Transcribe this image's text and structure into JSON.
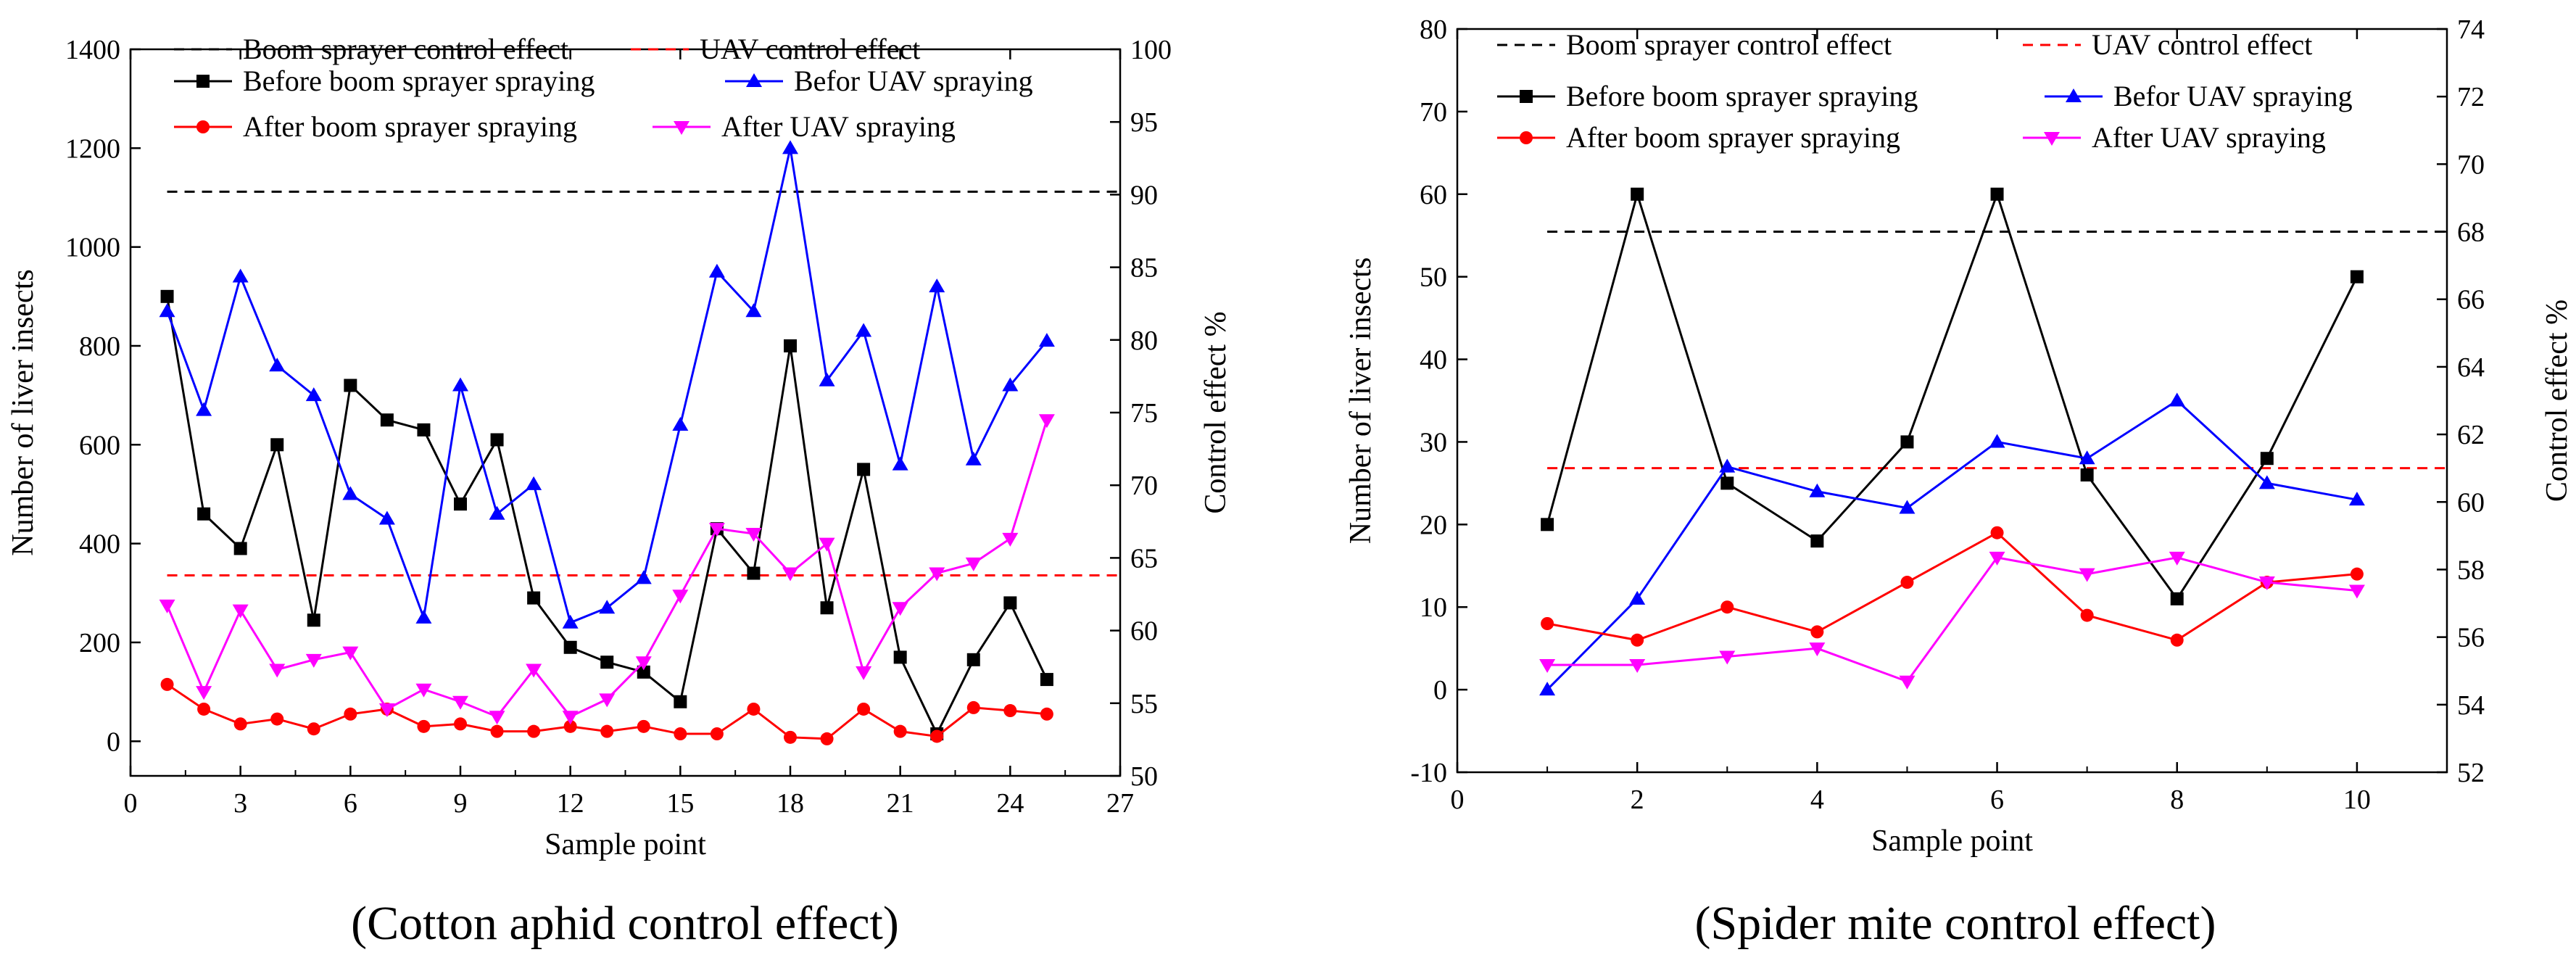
{
  "chart_data": [
    {
      "type": "line",
      "caption": "(Cotton aphid control effect)",
      "xlabel": "Sample point",
      "ylabel": "Number of liver insects",
      "y2label": "Control effect %",
      "xlim": [
        0,
        27
      ],
      "ylim": [
        -70,
        1400
      ],
      "y2lim": [
        50,
        100
      ],
      "xticks": [
        "0",
        "3",
        "6",
        "9",
        "12",
        "15",
        "18",
        "21",
        "24",
        "27"
      ],
      "xtick_values": [
        0,
        3,
        6,
        9,
        12,
        15,
        18,
        21,
        24,
        27
      ],
      "yticks": [
        "0",
        "200",
        "400",
        "600",
        "800",
        "1000",
        "1200",
        "1400"
      ],
      "ytick_values": [
        0,
        200,
        400,
        600,
        800,
        1000,
        1200,
        1400
      ],
      "y2ticks": [
        "50",
        "55",
        "60",
        "65",
        "70",
        "75",
        "80",
        "85",
        "90",
        "95",
        "100"
      ],
      "y2tick_values": [
        50,
        55,
        60,
        65,
        70,
        75,
        80,
        85,
        90,
        95,
        100
      ],
      "x": [
        1,
        2,
        3,
        4,
        5,
        6,
        7,
        8,
        9,
        10,
        11,
        12,
        13,
        14,
        15,
        16,
        17,
        18,
        19,
        20,
        21,
        22,
        23,
        24,
        25
      ],
      "series": [
        {
          "name": "Before boom sprayer spraying",
          "color": "#000000",
          "marker": "square",
          "values": [
            900,
            460,
            390,
            600,
            245,
            720,
            650,
            630,
            480,
            610,
            290,
            190,
            160,
            140,
            80,
            430,
            340,
            800,
            270,
            550,
            170,
            15,
            165,
            280,
            125
          ]
        },
        {
          "name": "Befor UAV spraying",
          "color": "#0000ff",
          "marker": "triangle-up",
          "values": [
            870,
            670,
            940,
            760,
            700,
            500,
            450,
            250,
            720,
            460,
            520,
            240,
            270,
            330,
            640,
            950,
            870,
            1200,
            730,
            830,
            560,
            920,
            570,
            720,
            810
          ]
        },
        {
          "name": "After boom sprayer spraying",
          "color": "#ff0000",
          "marker": "circle",
          "values": [
            115,
            65,
            35,
            45,
            25,
            55,
            65,
            30,
            35,
            20,
            20,
            30,
            20,
            30,
            15,
            15,
            65,
            8,
            5,
            65,
            20,
            10,
            68,
            62,
            55
          ]
        },
        {
          "name": "After UAV spraying",
          "color": "#ff00ff",
          "marker": "triangle-down",
          "values": [
            275,
            100,
            265,
            145,
            165,
            180,
            65,
            105,
            80,
            50,
            145,
            50,
            85,
            160,
            295,
            430,
            420,
            340,
            400,
            140,
            270,
            340,
            360,
            410,
            650
          ]
        }
      ],
      "reference_lines": [
        {
          "name": "Boom sprayer control effect",
          "color": "#000000",
          "axis": "right",
          "value": 90.2
        },
        {
          "name": "UAV control effect",
          "color": "#ff0000",
          "axis": "right",
          "value": 63.8
        }
      ],
      "legend_position": "top"
    },
    {
      "type": "line",
      "caption": "(Spider mite control effect)",
      "xlabel": "Sample point",
      "ylabel": "Number of liver insects",
      "y2label": "Control effect %",
      "xlim": [
        0,
        11
      ],
      "ylim": [
        -10,
        80
      ],
      "y2lim": [
        52,
        74
      ],
      "xticks": [
        "0",
        "2",
        "4",
        "6",
        "8",
        "10"
      ],
      "xtick_values": [
        0,
        2,
        4,
        6,
        8,
        10
      ],
      "yticks": [
        "-10",
        "0",
        "10",
        "20",
        "30",
        "40",
        "50",
        "60",
        "70",
        "80"
      ],
      "ytick_values": [
        -10,
        0,
        10,
        20,
        30,
        40,
        50,
        60,
        70,
        80
      ],
      "y2ticks": [
        "52",
        "54",
        "56",
        "58",
        "60",
        "62",
        "64",
        "66",
        "68",
        "70",
        "72",
        "74"
      ],
      "y2tick_values": [
        52,
        54,
        56,
        58,
        60,
        62,
        64,
        66,
        68,
        70,
        72,
        74
      ],
      "x": [
        1,
        2,
        3,
        4,
        5,
        6,
        7,
        8,
        9,
        10
      ],
      "series": [
        {
          "name": "Before boom sprayer spraying",
          "color": "#000000",
          "marker": "square",
          "values": [
            20,
            60,
            25,
            18,
            30,
            60,
            26,
            11,
            28,
            50
          ]
        },
        {
          "name": "Befor UAV spraying",
          "color": "#0000ff",
          "marker": "triangle-up",
          "values": [
            0,
            11,
            27,
            24,
            22,
            30,
            28,
            35,
            25,
            23
          ]
        },
        {
          "name": "After boom sprayer spraying",
          "color": "#ff0000",
          "marker": "circle",
          "values": [
            8,
            6,
            10,
            7,
            13,
            19,
            9,
            6,
            13,
            14
          ]
        },
        {
          "name": "After UAV spraying",
          "color": "#ff00ff",
          "marker": "triangle-down",
          "values": [
            3,
            3,
            4,
            5,
            1,
            16,
            14,
            16,
            13,
            12
          ]
        }
      ],
      "reference_lines": [
        {
          "name": "Boom sprayer control effect",
          "color": "#000000",
          "axis": "right",
          "value": 68
        },
        {
          "name": "UAV control effect",
          "color": "#ff0000",
          "axis": "right",
          "value": 61
        }
      ],
      "legend_position": "top"
    }
  ]
}
